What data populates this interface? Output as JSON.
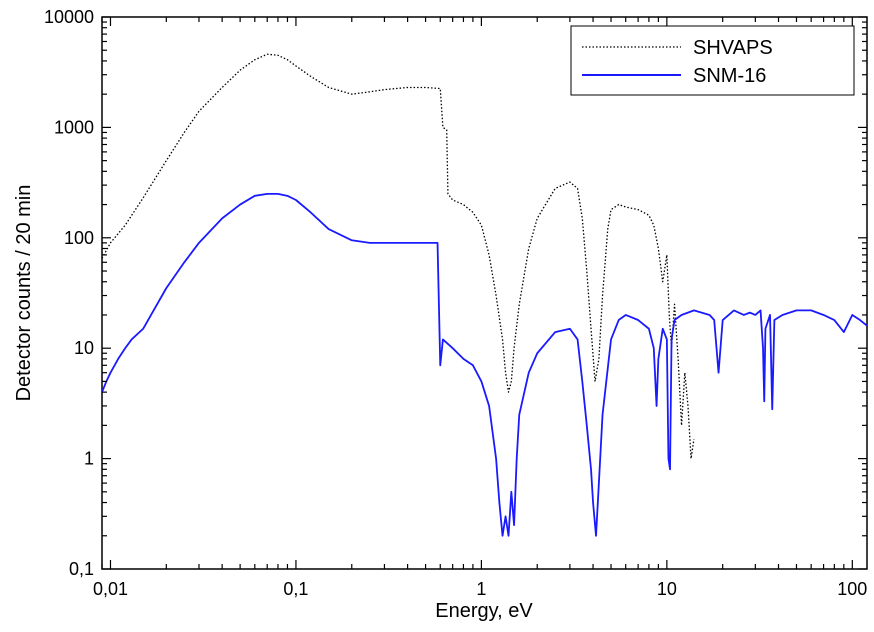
{
  "chart_data": {
    "type": "line",
    "xlabel": "Energy, eV",
    "ylabel": "Detector counts / 20 min",
    "x_scale": "log",
    "y_scale": "log",
    "xlim": [
      0.009,
      120
    ],
    "ylim": [
      0.1,
      10000
    ],
    "x_ticks": [
      {
        "value": 0.01,
        "label": "0,01"
      },
      {
        "value": 0.1,
        "label": "0,1"
      },
      {
        "value": 1,
        "label": "1"
      },
      {
        "value": 10,
        "label": "10"
      },
      {
        "value": 100,
        "label": "100"
      }
    ],
    "y_ticks": [
      {
        "value": 0.1,
        "label": "0,1"
      },
      {
        "value": 1,
        "label": "1"
      },
      {
        "value": 10,
        "label": "10"
      },
      {
        "value": 100,
        "label": "100"
      },
      {
        "value": 1000,
        "label": "1000"
      },
      {
        "value": 10000,
        "label": "10000"
      }
    ],
    "grid": false,
    "legend_position": "top-right",
    "series": [
      {
        "name": "SHVAPS",
        "color": "#000000",
        "style": "dotted",
        "points": [
          [
            0.009,
            65
          ],
          [
            0.01,
            90
          ],
          [
            0.012,
            130
          ],
          [
            0.015,
            230
          ],
          [
            0.02,
            500
          ],
          [
            0.025,
            900
          ],
          [
            0.03,
            1400
          ],
          [
            0.04,
            2300
          ],
          [
            0.05,
            3300
          ],
          [
            0.06,
            4100
          ],
          [
            0.07,
            4600
          ],
          [
            0.08,
            4500
          ],
          [
            0.09,
            4100
          ],
          [
            0.1,
            3600
          ],
          [
            0.12,
            2900
          ],
          [
            0.15,
            2300
          ],
          [
            0.2,
            2000
          ],
          [
            0.25,
            2100
          ],
          [
            0.3,
            2200
          ],
          [
            0.4,
            2300
          ],
          [
            0.5,
            2300
          ],
          [
            0.6,
            2250
          ],
          [
            0.62,
            1000
          ],
          [
            0.65,
            950
          ],
          [
            0.66,
            250
          ],
          [
            0.7,
            220
          ],
          [
            0.8,
            200
          ],
          [
            0.9,
            170
          ],
          [
            1.0,
            130
          ],
          [
            1.1,
            70
          ],
          [
            1.2,
            30
          ],
          [
            1.3,
            12
          ],
          [
            1.35,
            6
          ],
          [
            1.4,
            4
          ],
          [
            1.45,
            5
          ],
          [
            1.5,
            10
          ],
          [
            1.6,
            25
          ],
          [
            1.8,
            80
          ],
          [
            2.0,
            150
          ],
          [
            2.5,
            280
          ],
          [
            3.0,
            320
          ],
          [
            3.3,
            280
          ],
          [
            3.5,
            150
          ],
          [
            3.7,
            50
          ],
          [
            3.9,
            15
          ],
          [
            4.1,
            5
          ],
          [
            4.3,
            8
          ],
          [
            4.5,
            30
          ],
          [
            4.8,
            120
          ],
          [
            5.0,
            180
          ],
          [
            5.5,
            200
          ],
          [
            6.0,
            190
          ],
          [
            7.0,
            180
          ],
          [
            8.0,
            160
          ],
          [
            8.5,
            130
          ],
          [
            9.0,
            80
          ],
          [
            9.5,
            40
          ],
          [
            10.0,
            70
          ],
          [
            10.3,
            20
          ],
          [
            10.6,
            10
          ],
          [
            11.0,
            25
          ],
          [
            11.5,
            8
          ],
          [
            12.0,
            2
          ],
          [
            12.5,
            6
          ],
          [
            13.0,
            3
          ],
          [
            13.5,
            1.0
          ],
          [
            14.0,
            1.5
          ]
        ]
      },
      {
        "name": "SNM-16",
        "color": "#1a1aff",
        "style": "solid",
        "points": [
          [
            0.009,
            4
          ],
          [
            0.0095,
            5
          ],
          [
            0.01,
            6
          ],
          [
            0.011,
            8
          ],
          [
            0.012,
            10
          ],
          [
            0.013,
            12
          ],
          [
            0.015,
            15
          ],
          [
            0.02,
            35
          ],
          [
            0.025,
            60
          ],
          [
            0.03,
            90
          ],
          [
            0.04,
            150
          ],
          [
            0.05,
            200
          ],
          [
            0.06,
            240
          ],
          [
            0.07,
            250
          ],
          [
            0.08,
            250
          ],
          [
            0.09,
            240
          ],
          [
            0.1,
            220
          ],
          [
            0.12,
            170
          ],
          [
            0.15,
            120
          ],
          [
            0.2,
            95
          ],
          [
            0.25,
            90
          ],
          [
            0.3,
            90
          ],
          [
            0.4,
            90
          ],
          [
            0.5,
            90
          ],
          [
            0.58,
            90
          ],
          [
            0.6,
            7
          ],
          [
            0.62,
            12
          ],
          [
            0.7,
            10
          ],
          [
            0.8,
            8
          ],
          [
            0.9,
            7
          ],
          [
            1.0,
            5
          ],
          [
            1.1,
            3
          ],
          [
            1.2,
            1
          ],
          [
            1.25,
            0.4
          ],
          [
            1.3,
            0.2
          ],
          [
            1.35,
            0.3
          ],
          [
            1.4,
            0.2
          ],
          [
            1.45,
            0.5
          ],
          [
            1.5,
            0.25
          ],
          [
            1.55,
            1
          ],
          [
            1.6,
            2.5
          ],
          [
            1.8,
            6
          ],
          [
            2.0,
            9
          ],
          [
            2.5,
            14
          ],
          [
            3.0,
            15
          ],
          [
            3.3,
            12
          ],
          [
            3.5,
            5
          ],
          [
            3.7,
            2
          ],
          [
            3.9,
            0.8
          ],
          [
            4.0,
            0.4
          ],
          [
            4.15,
            0.2
          ],
          [
            4.3,
            0.6
          ],
          [
            4.5,
            2.5
          ],
          [
            5.0,
            12
          ],
          [
            5.5,
            18
          ],
          [
            6.0,
            20
          ],
          [
            7.0,
            18
          ],
          [
            8.0,
            15
          ],
          [
            8.5,
            10
          ],
          [
            8.8,
            3
          ],
          [
            9.0,
            8
          ],
          [
            9.5,
            15
          ],
          [
            10.0,
            12
          ],
          [
            10.2,
            1
          ],
          [
            10.4,
            0.8
          ],
          [
            10.6,
            12
          ],
          [
            11.0,
            18
          ],
          [
            12.0,
            20
          ],
          [
            14.0,
            22
          ],
          [
            17.0,
            20
          ],
          [
            18.0,
            18
          ],
          [
            19.0,
            6
          ],
          [
            20.0,
            18
          ],
          [
            23.0,
            22
          ],
          [
            26.0,
            20
          ],
          [
            28.0,
            21
          ],
          [
            30.0,
            20
          ],
          [
            32.0,
            22
          ],
          [
            33.0,
            10
          ],
          [
            33.5,
            3.3
          ],
          [
            34.0,
            15
          ],
          [
            36.0,
            20
          ],
          [
            37.0,
            2.8
          ],
          [
            38.0,
            18
          ],
          [
            42.0,
            20
          ],
          [
            50.0,
            22
          ],
          [
            60.0,
            22
          ],
          [
            70.0,
            20
          ],
          [
            80.0,
            18
          ],
          [
            90.0,
            14
          ],
          [
            100.0,
            20
          ],
          [
            110.0,
            18
          ],
          [
            120.0,
            16
          ]
        ]
      }
    ]
  }
}
